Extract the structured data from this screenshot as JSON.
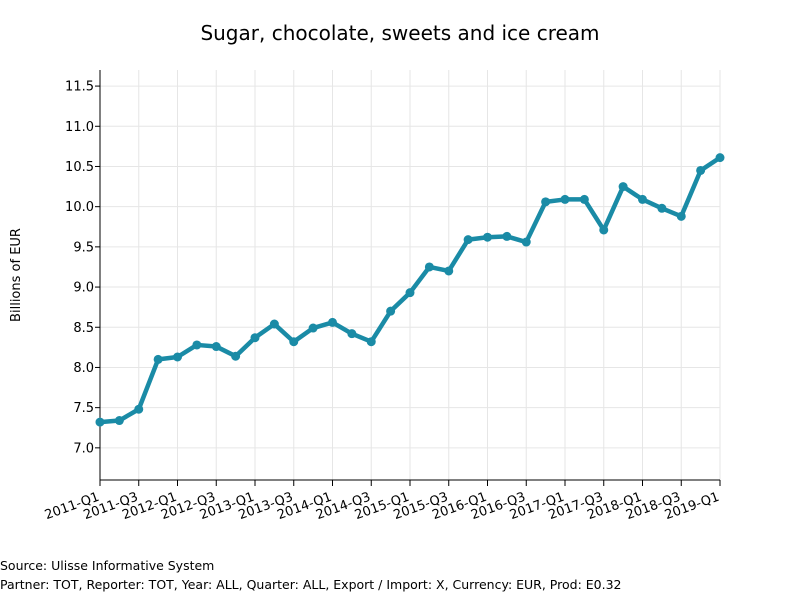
{
  "title": "Sugar, chocolate, sweets and ice cream",
  "source": {
    "line1": "Source: Ulisse Informative System",
    "line2": "Partner: TOT, Reporter: TOT, Year: ALL, Quarter: ALL, Export / Import: X, Currency: EUR, Prod: E0.32"
  },
  "colors": {
    "series": "#1a8ba6",
    "grid": "#e6e6e6",
    "axis": "#000000"
  },
  "chart_data": {
    "type": "line",
    "title": "Sugar, chocolate, sweets and ice cream",
    "xlabel": "",
    "ylabel": "Billions of EUR",
    "ylim": [
      6.6,
      11.7
    ],
    "yticks": [
      7.0,
      7.5,
      8.0,
      8.5,
      9.0,
      9.5,
      10.0,
      10.5,
      11.0,
      11.5
    ],
    "ytick_labels": [
      "7.0",
      "7.5",
      "8.0",
      "8.5",
      "9.0",
      "9.5",
      "10.0",
      "10.5",
      "11.0",
      "11.5"
    ],
    "x": [
      "2011-Q1",
      "2011-Q2",
      "2011-Q3",
      "2011-Q4",
      "2012-Q1",
      "2012-Q2",
      "2012-Q3",
      "2012-Q4",
      "2013-Q1",
      "2013-Q2",
      "2013-Q3",
      "2013-Q4",
      "2014-Q1",
      "2014-Q2",
      "2014-Q3",
      "2014-Q4",
      "2015-Q1",
      "2015-Q2",
      "2015-Q3",
      "2015-Q4",
      "2016-Q1",
      "2016-Q2",
      "2016-Q3",
      "2016-Q4",
      "2017-Q1",
      "2017-Q2",
      "2017-Q3",
      "2017-Q4",
      "2018-Q1",
      "2018-Q2",
      "2018-Q3",
      "2018-Q4",
      "2019-Q1"
    ],
    "xtick_labels": [
      "2011-Q1",
      "2011-Q3",
      "2012-Q1",
      "2012-Q3",
      "2013-Q1",
      "2013-Q3",
      "2014-Q1",
      "2014-Q3",
      "2015-Q1",
      "2015-Q3",
      "2016-Q1",
      "2016-Q3",
      "2017-Q1",
      "2017-Q3",
      "2018-Q1",
      "2018-Q3",
      "2019-Q1"
    ],
    "series": [
      {
        "values": [
          7.32,
          7.34,
          7.48,
          8.1,
          8.13,
          8.28,
          8.26,
          8.14,
          8.37,
          8.54,
          8.32,
          8.49,
          8.56,
          8.42,
          8.32,
          8.7,
          8.93,
          9.25,
          9.2,
          9.59,
          9.62,
          9.63,
          9.56,
          10.06,
          10.09,
          10.09,
          9.71,
          10.25,
          10.09,
          9.98,
          9.88,
          10.45,
          10.61
        ]
      }
    ],
    "grid": true,
    "legend": "none"
  }
}
